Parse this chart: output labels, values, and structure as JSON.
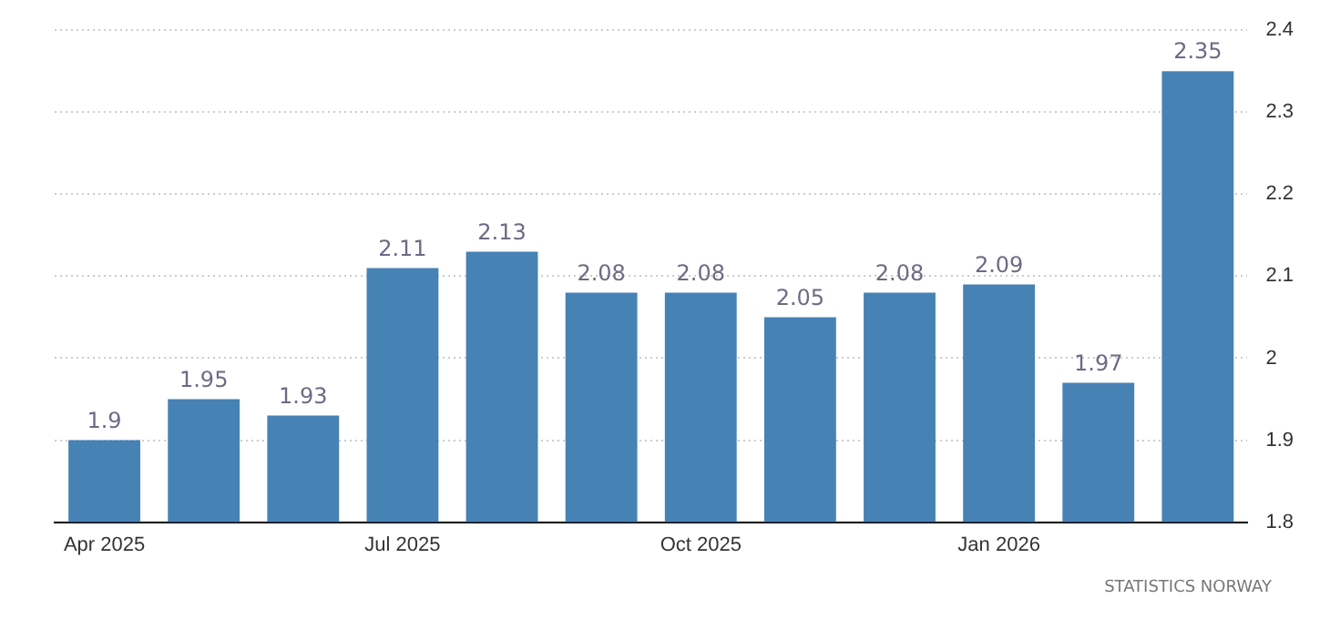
{
  "chart_data": {
    "type": "bar",
    "categories": [
      "Apr 2025",
      null,
      null,
      "Jul 2025",
      null,
      null,
      "Oct 2025",
      null,
      null,
      "Jan 2026",
      null,
      null
    ],
    "values": [
      1.9,
      1.95,
      1.93,
      2.11,
      2.13,
      2.08,
      2.08,
      2.05,
      2.08,
      2.09,
      1.97,
      2.35
    ],
    "color": "#4682b4",
    "ylim": [
      1.8,
      2.4
    ],
    "yticks": [
      1.8,
      1.9,
      {
        "value": 2,
        "label": "2"
      },
      2.1,
      2.2,
      2.3,
      2.4
    ],
    "grid": "y",
    "data_labels": true,
    "annotations": [
      "STATISTICS NORWAY"
    ]
  }
}
